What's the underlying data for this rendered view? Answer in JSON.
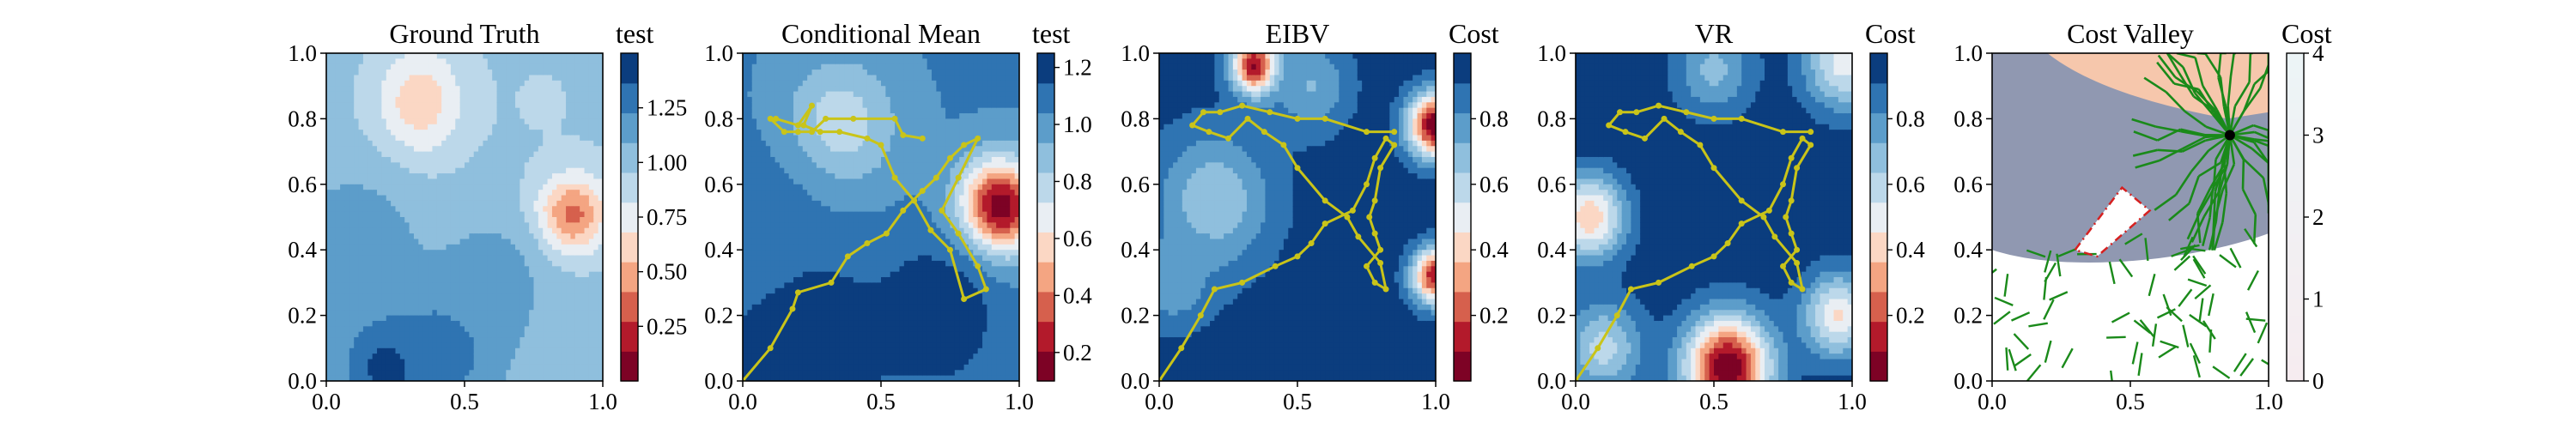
{
  "chart_data": [
    {
      "type": "heatmap",
      "title": "Ground Truth",
      "colorbar_label": "test",
      "xlim": [
        0,
        1
      ],
      "ylim": [
        0,
        1
      ],
      "xticks": [
        "0.0",
        "0.5",
        "1.0"
      ],
      "yticks": [
        "0.0",
        "0.2",
        "0.4",
        "0.6",
        "0.8",
        "1.0"
      ],
      "colorbar_range": [
        0.0,
        1.5
      ],
      "colorbar_ticks": [
        "0.25",
        "0.50",
        "0.75",
        "1.00",
        "1.25"
      ],
      "colorbar_tick_values": [
        0.25,
        0.5,
        0.75,
        1.0,
        1.25
      ],
      "colormap": "RdBu",
      "field_features": [
        {
          "x": 0.88,
          "y": 0.52,
          "value": 0.15,
          "spread": 0.09
        },
        {
          "x": 0.35,
          "y": 0.85,
          "value": 0.55,
          "spread": 0.12
        },
        {
          "x": 0.22,
          "y": 0.05,
          "value": 1.45,
          "spread": 0.12
        },
        {
          "x": 0.45,
          "y": 0.12,
          "value": 1.35,
          "spread": 0.13
        },
        {
          "x": 0.1,
          "y": 0.4,
          "value": 1.2,
          "spread": 0.16
        },
        {
          "x": 0.78,
          "y": 0.85,
          "value": 0.95,
          "spread": 0.2
        },
        {
          "x": 0.6,
          "y": 0.3,
          "value": 1.15,
          "spread": 0.15
        }
      ],
      "field_base": 1.0
    },
    {
      "type": "heatmap",
      "title": "Conditional Mean",
      "colorbar_label": "test",
      "xlim": [
        0,
        1
      ],
      "ylim": [
        0,
        1
      ],
      "xticks": [
        "0.0",
        "0.5",
        "1.0"
      ],
      "yticks": [
        "0.0",
        "0.2",
        "0.4",
        "0.6",
        "0.8",
        "1.0"
      ],
      "colorbar_range": [
        0.1,
        1.25
      ],
      "colorbar_ticks": [
        "0.2",
        "0.4",
        "0.6",
        "0.8",
        "1.0",
        "1.2"
      ],
      "colorbar_tick_values": [
        0.2,
        0.4,
        0.6,
        0.8,
        1.0,
        1.2
      ],
      "colormap": "RdBu",
      "field_features": [
        {
          "x": 0.93,
          "y": 0.53,
          "value": 0.1,
          "spread": 0.1
        },
        {
          "x": 0.35,
          "y": 0.78,
          "value": 0.75,
          "spread": 0.14
        },
        {
          "x": 0.2,
          "y": 0.1,
          "value": 1.3,
          "spread": 0.2
        },
        {
          "x": 0.7,
          "y": 0.2,
          "value": 1.25,
          "spread": 0.15
        },
        {
          "x": 0.0,
          "y": 0.45,
          "value": 1.1,
          "spread": 0.2
        }
      ],
      "field_base": 1.05,
      "path": [
        [
          0.0,
          0.0
        ],
        [
          0.1,
          0.1
        ],
        [
          0.18,
          0.22
        ],
        [
          0.2,
          0.27
        ],
        [
          0.32,
          0.3
        ],
        [
          0.38,
          0.38
        ],
        [
          0.45,
          0.42
        ],
        [
          0.52,
          0.45
        ],
        [
          0.58,
          0.52
        ],
        [
          0.65,
          0.58
        ],
        [
          0.7,
          0.62
        ],
        [
          0.75,
          0.68
        ],
        [
          0.8,
          0.72
        ],
        [
          0.85,
          0.74
        ],
        [
          0.78,
          0.62
        ],
        [
          0.72,
          0.52
        ],
        [
          0.78,
          0.45
        ],
        [
          0.85,
          0.35
        ],
        [
          0.88,
          0.28
        ],
        [
          0.8,
          0.25
        ],
        [
          0.75,
          0.4
        ],
        [
          0.68,
          0.46
        ],
        [
          0.62,
          0.55
        ],
        [
          0.55,
          0.62
        ],
        [
          0.5,
          0.72
        ],
        [
          0.45,
          0.74
        ],
        [
          0.35,
          0.76
        ],
        [
          0.28,
          0.76
        ],
        [
          0.22,
          0.78
        ],
        [
          0.25,
          0.84
        ],
        [
          0.2,
          0.78
        ],
        [
          0.12,
          0.8
        ],
        [
          0.1,
          0.8
        ],
        [
          0.15,
          0.76
        ],
        [
          0.2,
          0.76
        ],
        [
          0.25,
          0.76
        ],
        [
          0.3,
          0.8
        ],
        [
          0.4,
          0.8
        ],
        [
          0.55,
          0.8
        ],
        [
          0.58,
          0.75
        ],
        [
          0.65,
          0.74
        ]
      ]
    },
    {
      "type": "heatmap",
      "title": "EIBV",
      "colorbar_label": "Cost",
      "xlim": [
        0,
        1
      ],
      "ylim": [
        0,
        1
      ],
      "xticks": [
        "0.0",
        "0.5",
        "1.0"
      ],
      "yticks": [
        "0.0",
        "0.2",
        "0.4",
        "0.6",
        "0.8",
        "1.0"
      ],
      "colorbar_range": [
        0.0,
        1.0
      ],
      "colorbar_ticks": [
        "0.2",
        "0.4",
        "0.6",
        "0.8"
      ],
      "colorbar_tick_values": [
        0.2,
        0.4,
        0.6,
        0.8
      ],
      "colormap": "RdBu",
      "field_features": [
        {
          "x": 0.35,
          "y": 0.96,
          "value": 0.0,
          "spread": 0.06
        },
        {
          "x": 1.0,
          "y": 0.78,
          "value": 0.0,
          "spread": 0.07
        },
        {
          "x": 1.0,
          "y": 0.32,
          "value": 0.1,
          "spread": 0.06
        },
        {
          "x": 0.2,
          "y": 0.55,
          "value": 0.65,
          "spread": 0.15
        },
        {
          "x": 0.55,
          "y": 0.9,
          "value": 0.72,
          "spread": 0.1
        },
        {
          "x": 0.05,
          "y": 0.3,
          "value": 0.75,
          "spread": 0.1
        }
      ],
      "field_base": 0.96,
      "path": [
        [
          0.0,
          0.0
        ],
        [
          0.08,
          0.1
        ],
        [
          0.15,
          0.2
        ],
        [
          0.2,
          0.28
        ],
        [
          0.3,
          0.3
        ],
        [
          0.42,
          0.35
        ],
        [
          0.5,
          0.38
        ],
        [
          0.55,
          0.42
        ],
        [
          0.6,
          0.48
        ],
        [
          0.7,
          0.52
        ],
        [
          0.75,
          0.6
        ],
        [
          0.78,
          0.68
        ],
        [
          0.82,
          0.74
        ],
        [
          0.85,
          0.72
        ],
        [
          0.8,
          0.65
        ],
        [
          0.78,
          0.55
        ],
        [
          0.76,
          0.5
        ],
        [
          0.78,
          0.45
        ],
        [
          0.8,
          0.4
        ],
        [
          0.75,
          0.35
        ],
        [
          0.78,
          0.3
        ],
        [
          0.82,
          0.28
        ],
        [
          0.8,
          0.36
        ],
        [
          0.72,
          0.44
        ],
        [
          0.68,
          0.5
        ],
        [
          0.6,
          0.55
        ],
        [
          0.5,
          0.65
        ],
        [
          0.45,
          0.72
        ],
        [
          0.38,
          0.76
        ],
        [
          0.32,
          0.8
        ],
        [
          0.25,
          0.74
        ],
        [
          0.18,
          0.76
        ],
        [
          0.12,
          0.78
        ],
        [
          0.16,
          0.82
        ],
        [
          0.22,
          0.82
        ],
        [
          0.3,
          0.84
        ],
        [
          0.4,
          0.82
        ],
        [
          0.5,
          0.8
        ],
        [
          0.6,
          0.8
        ],
        [
          0.75,
          0.76
        ],
        [
          0.85,
          0.76
        ]
      ]
    },
    {
      "type": "heatmap",
      "title": "VR",
      "colorbar_label": "Cost",
      "xlim": [
        0,
        1
      ],
      "ylim": [
        0,
        1
      ],
      "xticks": [
        "0.0",
        "0.5",
        "1.0"
      ],
      "yticks": [
        "0.0",
        "0.2",
        "0.4",
        "0.6",
        "0.8",
        "1.0"
      ],
      "colorbar_range": [
        0.0,
        1.0
      ],
      "colorbar_ticks": [
        "0.2",
        "0.4",
        "0.6",
        "0.8"
      ],
      "colorbar_tick_values": [
        0.2,
        0.4,
        0.6,
        0.8
      ],
      "colormap": "RdBu",
      "field_features": [
        {
          "x": 0.55,
          "y": 0.04,
          "value": 0.0,
          "spread": 0.11
        },
        {
          "x": 0.05,
          "y": 0.5,
          "value": 0.38,
          "spread": 0.09
        },
        {
          "x": 0.97,
          "y": 0.97,
          "value": 0.5,
          "spread": 0.1
        },
        {
          "x": 0.95,
          "y": 0.2,
          "value": 0.45,
          "spread": 0.09
        },
        {
          "x": 0.5,
          "y": 0.95,
          "value": 0.7,
          "spread": 0.1
        },
        {
          "x": 0.1,
          "y": 0.1,
          "value": 0.6,
          "spread": 0.1
        }
      ],
      "field_base": 0.97,
      "path": [
        [
          0.0,
          0.0
        ],
        [
          0.08,
          0.1
        ],
        [
          0.15,
          0.2
        ],
        [
          0.2,
          0.28
        ],
        [
          0.3,
          0.3
        ],
        [
          0.42,
          0.35
        ],
        [
          0.5,
          0.38
        ],
        [
          0.55,
          0.42
        ],
        [
          0.6,
          0.48
        ],
        [
          0.7,
          0.52
        ],
        [
          0.75,
          0.6
        ],
        [
          0.78,
          0.68
        ],
        [
          0.82,
          0.74
        ],
        [
          0.85,
          0.72
        ],
        [
          0.8,
          0.65
        ],
        [
          0.78,
          0.55
        ],
        [
          0.76,
          0.5
        ],
        [
          0.78,
          0.45
        ],
        [
          0.8,
          0.4
        ],
        [
          0.75,
          0.35
        ],
        [
          0.78,
          0.3
        ],
        [
          0.82,
          0.28
        ],
        [
          0.8,
          0.36
        ],
        [
          0.72,
          0.44
        ],
        [
          0.68,
          0.5
        ],
        [
          0.6,
          0.55
        ],
        [
          0.5,
          0.65
        ],
        [
          0.45,
          0.72
        ],
        [
          0.38,
          0.76
        ],
        [
          0.32,
          0.8
        ],
        [
          0.25,
          0.74
        ],
        [
          0.18,
          0.76
        ],
        [
          0.12,
          0.78
        ],
        [
          0.16,
          0.82
        ],
        [
          0.22,
          0.82
        ],
        [
          0.3,
          0.84
        ],
        [
          0.4,
          0.82
        ],
        [
          0.5,
          0.8
        ],
        [
          0.6,
          0.8
        ],
        [
          0.75,
          0.76
        ],
        [
          0.85,
          0.76
        ]
      ]
    },
    {
      "type": "heatmap",
      "title": "Cost Valley",
      "colorbar_label": "Cost",
      "xlim": [
        0,
        1
      ],
      "ylim": [
        0,
        1
      ],
      "xticks": [
        "0.0",
        "0.5",
        "1.0"
      ],
      "yticks": [
        "0.0",
        "0.2",
        "0.4",
        "0.6",
        "0.8",
        "1.0"
      ],
      "colorbar_range": [
        0,
        4
      ],
      "colorbar_ticks": [
        "0",
        "1",
        "2",
        "3",
        "4"
      ],
      "colorbar_tick_values": [
        0,
        1,
        2,
        3,
        4
      ],
      "colormap": "RdBu",
      "current_location": [
        0.86,
        0.75
      ],
      "obstacle_polygon": [
        [
          0.3,
          0.4
        ],
        [
          0.47,
          0.59
        ],
        [
          0.57,
          0.52
        ],
        [
          0.38,
          0.38
        ]
      ]
    }
  ]
}
